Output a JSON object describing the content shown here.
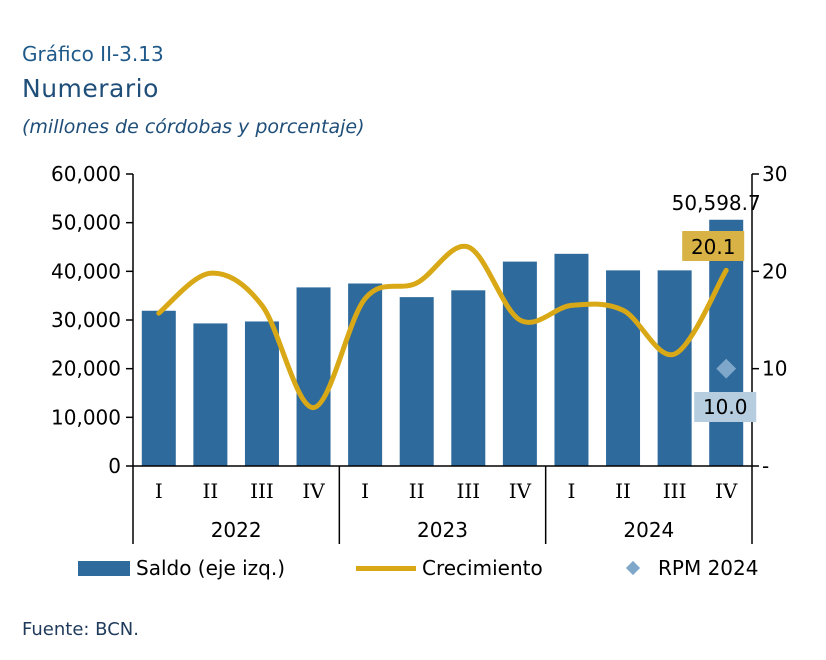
{
  "header": {
    "label": "Gráfico II-3.13",
    "title": "Numerario",
    "subtitle": "(millones de córdobas y porcentaje)"
  },
  "source": "Fuente: BCN.",
  "colors": {
    "bar": "#2e6a9c",
    "line": "#d8a816",
    "rpm": "#7ea7c9",
    "callout_growth": "#d9b245",
    "callout_rpm": "#b6cde0"
  },
  "legend": {
    "saldo": "Saldo (eje izq.)",
    "crecimiento": "Crecimiento",
    "rpm": "RPM 2024"
  },
  "chart_data": {
    "type": "bar",
    "categories": [
      "I",
      "II",
      "III",
      "IV",
      "I",
      "II",
      "III",
      "IV",
      "I",
      "II",
      "III",
      "IV"
    ],
    "groups": [
      {
        "label": "2022",
        "count": 4
      },
      {
        "label": "2023",
        "count": 4
      },
      {
        "label": "2024",
        "count": 4
      }
    ],
    "series": [
      {
        "name": "Saldo (eje izq.)",
        "type": "bar",
        "axis": "left",
        "values": [
          31900,
          29300,
          29700,
          36700,
          37500,
          34700,
          36100,
          42000,
          43600,
          40200,
          40200,
          50598.7
        ]
      },
      {
        "name": "Crecimiento",
        "type": "line",
        "axis": "right",
        "values": [
          15.7,
          19.8,
          16.5,
          6.0,
          17.2,
          18.8,
          22.5,
          15.0,
          16.5,
          16.0,
          11.5,
          20.1
        ]
      },
      {
        "name": "RPM 2024",
        "type": "scatter",
        "axis": "right",
        "category_index": 11,
        "values": [
          10.0
        ]
      }
    ],
    "yleft": {
      "ylim": [
        0,
        60000
      ],
      "ticks": [
        "60,000",
        "50,000",
        "40,000",
        "30,000",
        "20,000",
        "10,000",
        "0"
      ]
    },
    "yright": {
      "ylim": [
        0,
        30
      ],
      "ticks": [
        "30",
        "20",
        "10",
        "-"
      ]
    },
    "annotations": {
      "last_bar": "50,598.7",
      "last_growth": "20.1",
      "rpm": "10.0"
    },
    "legend_position": "bottom"
  }
}
